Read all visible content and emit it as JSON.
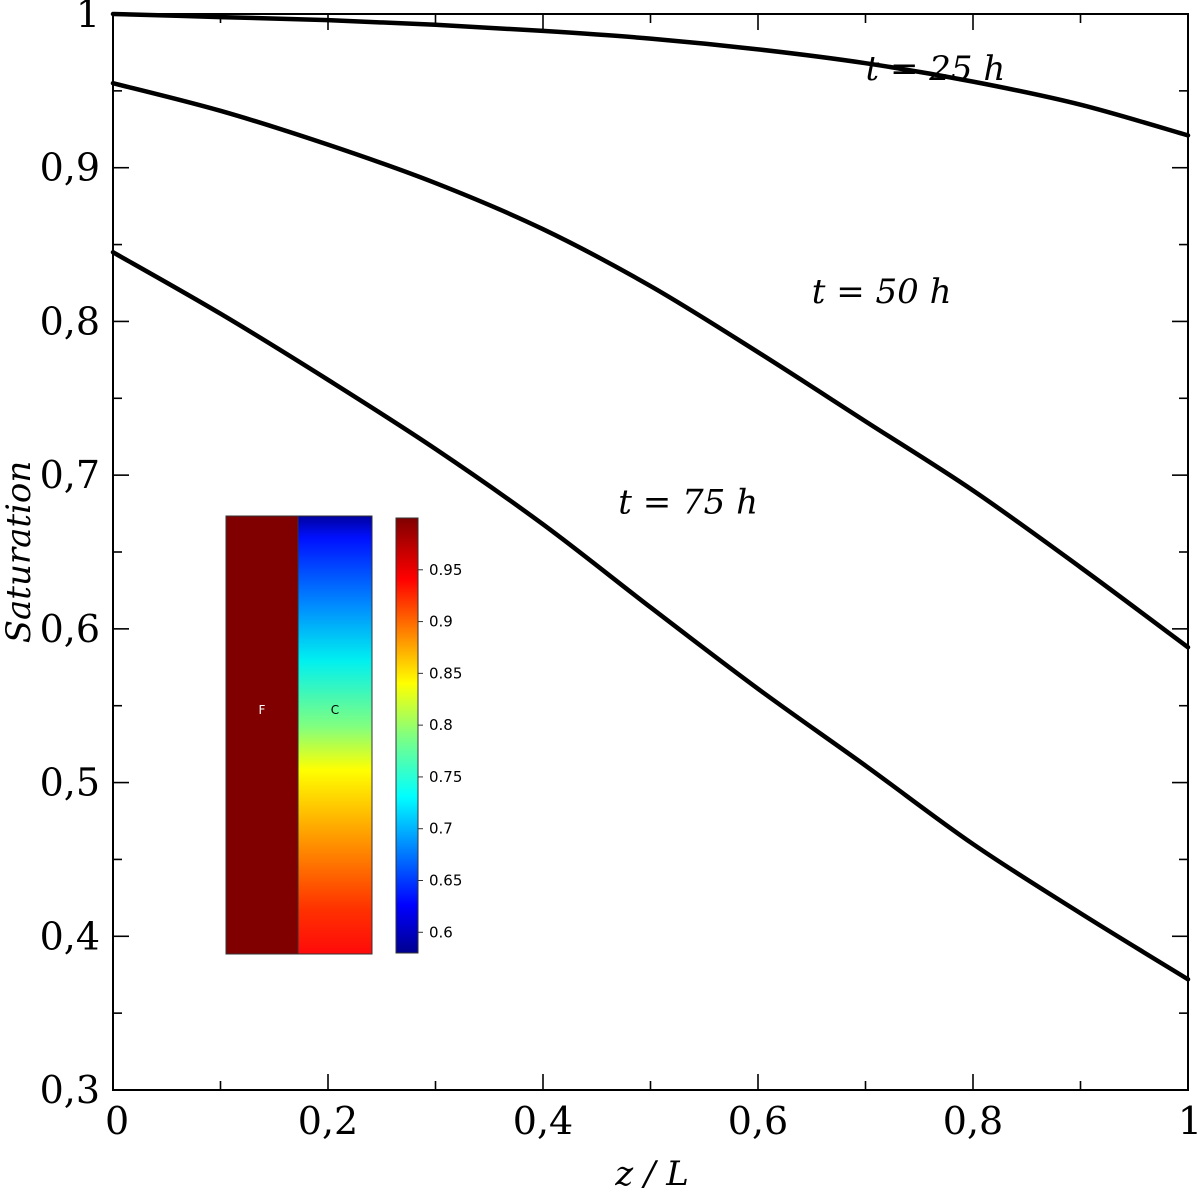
{
  "chart_data": {
    "type": "line",
    "xlabel": "z / L",
    "ylabel": "Saturation",
    "xlim": [
      0,
      1
    ],
    "ylim": [
      0.3,
      1
    ],
    "x_ticks": [
      {
        "value": 0,
        "label": "0"
      },
      {
        "value": 0.2,
        "label": "0,2"
      },
      {
        "value": 0.4,
        "label": "0,4"
      },
      {
        "value": 0.6,
        "label": "0,6"
      },
      {
        "value": 0.8,
        "label": "0,8"
      },
      {
        "value": 1,
        "label": "1"
      }
    ],
    "x_minor_ticks": [
      0.1,
      0.3,
      0.5,
      0.7,
      0.9
    ],
    "y_ticks": [
      {
        "value": 0.3,
        "label": "0,3"
      },
      {
        "value": 0.4,
        "label": "0,4"
      },
      {
        "value": 0.5,
        "label": "0,5"
      },
      {
        "value": 0.6,
        "label": "0,6"
      },
      {
        "value": 0.7,
        "label": "0,7"
      },
      {
        "value": 0.8,
        "label": "0,8"
      },
      {
        "value": 0.9,
        "label": "0,9"
      },
      {
        "value": 1,
        "label": "1"
      }
    ],
    "y_minor_ticks": [
      0.35,
      0.45,
      0.55,
      0.65,
      0.75,
      0.85,
      0.95
    ],
    "grid": false,
    "x": [
      0,
      0.1,
      0.2,
      0.3,
      0.4,
      0.5,
      0.6,
      0.7,
      0.8,
      0.9,
      1.0
    ],
    "series": [
      {
        "label_text": "t = 25 h",
        "label_x": 0.7,
        "label_y": 0.957,
        "values": [
          1.0,
          0.998,
          0.996,
          0.993,
          0.989,
          0.984,
          0.977,
          0.968,
          0.956,
          0.941,
          0.921
        ]
      },
      {
        "label_text": "t = 50 h",
        "label_x": 0.65,
        "label_y": 0.812,
        "values": [
          0.955,
          0.937,
          0.915,
          0.89,
          0.86,
          0.823,
          0.78,
          0.735,
          0.69,
          0.64,
          0.588
        ]
      },
      {
        "label_text": "t = 75 h",
        "label_x": 0.47,
        "label_y": 0.675,
        "values": [
          0.845,
          0.805,
          0.762,
          0.717,
          0.668,
          0.614,
          0.561,
          0.511,
          0.46,
          0.415,
          0.372
        ]
      }
    ],
    "inset": {
      "regions": [
        {
          "label": "F",
          "uniform_value": 0.99
        },
        {
          "label": "C",
          "top_value": 0.6,
          "bottom_value": 0.97
        }
      ],
      "colorbar": {
        "min": 0.58,
        "max": 1.0,
        "ticks": [
          {
            "value": 0.95,
            "label": "0.95"
          },
          {
            "value": 0.9,
            "label": "0.9"
          },
          {
            "value": 0.85,
            "label": "0.85"
          },
          {
            "value": 0.8,
            "label": "0.8"
          },
          {
            "value": 0.75,
            "label": "0.75"
          },
          {
            "value": 0.7,
            "label": "0.7"
          },
          {
            "value": 0.65,
            "label": "0.65"
          },
          {
            "value": 0.6,
            "label": "0.6"
          }
        ]
      }
    }
  }
}
